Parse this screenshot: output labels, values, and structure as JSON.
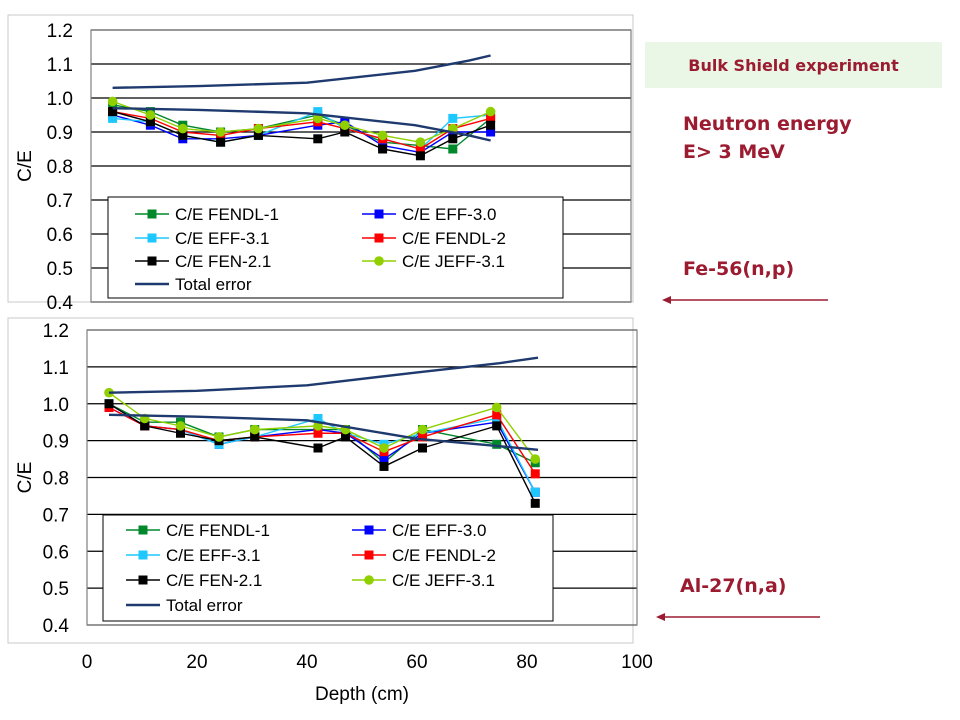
{
  "header": {
    "banner": "Bulk Shield experiment",
    "energy_line1": "Neutron energy",
    "energy_line2": "E> 3 MeV",
    "reaction_top": "Fe-56(n,p)",
    "reaction_bottom": "Al-27(n,a)"
  },
  "colors": {
    "FENDL-1": "#00882b",
    "EFF-3.0": "#0000ff",
    "EFF-3.1": "#1ec8ff",
    "FENDL-2": "#ff0000",
    "FEN-2.1": "#000000",
    "JEFF-3.1": "#90d000",
    "Total error": "#1f3a6e",
    "annotation": "#9b1b30"
  },
  "chart_data": [
    {
      "type": "line",
      "reaction": "Fe-56(n,p)",
      "ylabel": "C/E",
      "ylim": [
        0.4,
        1.2
      ],
      "yticks": [
        "0.4",
        "0.5",
        "0.6",
        "0.7",
        "0.8",
        "0.9",
        "1.0",
        "1.1",
        "1.2"
      ],
      "xlim": [
        0,
        100
      ],
      "grid": "horizontal",
      "legend": "bottom-left",
      "x": [
        4,
        11,
        17,
        24,
        31,
        42,
        47,
        54,
        61,
        67,
        74
      ],
      "series": [
        {
          "name": "C/E FENDL-1",
          "key": "FENDL-1",
          "marker": "square",
          "values": [
            0.98,
            0.96,
            0.92,
            0.9,
            0.91,
            0.95,
            0.92,
            0.87,
            0.86,
            0.85,
            0.94
          ]
        },
        {
          "name": "C/E EFF-3.0",
          "key": "EFF-3.0",
          "marker": "square",
          "values": [
            0.95,
            0.92,
            0.88,
            0.88,
            0.89,
            0.92,
            0.93,
            0.86,
            0.84,
            0.9,
            0.9
          ]
        },
        {
          "name": "C/E EFF-3.1",
          "key": "EFF-3.1",
          "marker": "square",
          "values": [
            0.94,
            0.93,
            0.89,
            0.87,
            0.89,
            0.96,
            0.91,
            0.88,
            0.85,
            0.94,
            0.95
          ]
        },
        {
          "name": "C/E FENDL-2",
          "key": "FENDL-2",
          "marker": "square",
          "values": [
            0.96,
            0.94,
            0.9,
            0.89,
            0.91,
            0.93,
            0.91,
            0.88,
            0.85,
            0.91,
            0.94
          ]
        },
        {
          "name": "C/E FEN-2.1",
          "key": "FEN-2.1",
          "marker": "square",
          "values": [
            0.96,
            0.93,
            0.89,
            0.87,
            0.89,
            0.88,
            0.9,
            0.85,
            0.83,
            0.88,
            0.92
          ]
        },
        {
          "name": "C/E JEFF-3.1",
          "key": "JEFF-3.1",
          "marker": "circle",
          "values": [
            0.99,
            0.95,
            0.91,
            0.9,
            0.91,
            0.94,
            0.92,
            0.89,
            0.87,
            0.91,
            0.96
          ]
        },
        {
          "name": "Total error",
          "key": "Total error",
          "marker": "none",
          "x": [
            4,
            20,
            40,
            60,
            70,
            74
          ],
          "values": [
            1.03,
            1.035,
            1.045,
            1.08,
            1.11,
            1.125
          ]
        },
        {
          "name": "",
          "key": "Total error",
          "marker": "none",
          "x": [
            4,
            20,
            40,
            60,
            70,
            74
          ],
          "values": [
            0.97,
            0.965,
            0.955,
            0.92,
            0.89,
            0.875
          ]
        }
      ],
      "legend_entries": [
        {
          "label": "C/E FENDL-1",
          "key": "FENDL-1",
          "marker": "square"
        },
        {
          "label": "C/E EFF-3.0",
          "key": "EFF-3.0",
          "marker": "square"
        },
        {
          "label": "C/E EFF-3.1",
          "key": "EFF-3.1",
          "marker": "square"
        },
        {
          "label": "C/E FENDL-2",
          "key": "FENDL-2",
          "marker": "square"
        },
        {
          "label": "C/E FEN-2.1",
          "key": "FEN-2.1",
          "marker": "square"
        },
        {
          "label": "C/E JEFF-3.1",
          "key": "JEFF-3.1",
          "marker": "circle"
        },
        {
          "label": "Total error",
          "key": "Total error",
          "marker": "none"
        }
      ]
    },
    {
      "type": "line",
      "reaction": "Al-27(n,a)",
      "xlabel": "Depth (cm)",
      "ylabel": "C/E",
      "ylim": [
        0.4,
        1.2
      ],
      "yticks": [
        "0.4",
        "0.5",
        "0.6",
        "0.7",
        "0.8",
        "0.9",
        "1.0",
        "1.1",
        "1.2"
      ],
      "xlim": [
        0,
        100
      ],
      "xticks": [
        "0",
        "20",
        "40",
        "60",
        "80",
        "100"
      ],
      "grid": "horizontal",
      "legend": "bottom-left",
      "x": [
        4,
        10.5,
        17,
        24,
        30.5,
        42,
        47,
        54,
        61,
        74.5,
        81.5
      ],
      "series": [
        {
          "name": "C/E FENDL-1",
          "key": "FENDL-1",
          "marker": "square",
          "values": [
            1.0,
            0.95,
            0.95,
            0.91,
            0.93,
            0.93,
            0.93,
            0.84,
            0.93,
            0.89,
            0.84
          ]
        },
        {
          "name": "C/E EFF-3.0",
          "key": "EFF-3.0",
          "marker": "square",
          "values": [
            0.99,
            0.94,
            0.93,
            0.89,
            0.91,
            0.93,
            0.92,
            0.85,
            0.92,
            0.95,
            0.76
          ]
        },
        {
          "name": "C/E EFF-3.1",
          "key": "EFF-3.1",
          "marker": "square",
          "values": [
            1.0,
            0.94,
            0.93,
            0.89,
            0.91,
            0.96,
            0.92,
            0.89,
            0.92,
            0.96,
            0.76
          ]
        },
        {
          "name": "C/E FENDL-2",
          "key": "FENDL-2",
          "marker": "square",
          "values": [
            0.99,
            0.94,
            0.93,
            0.9,
            0.91,
            0.92,
            0.92,
            0.87,
            0.91,
            0.97,
            0.81
          ]
        },
        {
          "name": "C/E FEN-2.1",
          "key": "FEN-2.1",
          "marker": "square",
          "values": [
            1.0,
            0.94,
            0.92,
            0.9,
            0.91,
            0.88,
            0.91,
            0.83,
            0.88,
            0.94,
            0.73
          ]
        },
        {
          "name": "C/E JEFF-3.1",
          "key": "JEFF-3.1",
          "marker": "circle",
          "values": [
            1.03,
            0.96,
            0.94,
            0.91,
            0.93,
            0.94,
            0.93,
            0.88,
            0.93,
            0.99,
            0.85
          ]
        },
        {
          "name": "Total error",
          "key": "Total error",
          "marker": "none",
          "x": [
            4,
            20,
            40,
            60,
            75,
            82
          ],
          "values": [
            1.03,
            1.035,
            1.05,
            1.085,
            1.11,
            1.125
          ]
        },
        {
          "name": "",
          "key": "Total error",
          "marker": "none",
          "x": [
            4,
            20,
            40,
            60,
            75,
            82
          ],
          "values": [
            0.97,
            0.965,
            0.955,
            0.905,
            0.885,
            0.875
          ]
        }
      ],
      "legend_entries": [
        {
          "label": "C/E FENDL-1",
          "key": "FENDL-1",
          "marker": "square"
        },
        {
          "label": "C/E EFF-3.0",
          "key": "EFF-3.0",
          "marker": "square"
        },
        {
          "label": "C/E EFF-3.1",
          "key": "EFF-3.1",
          "marker": "square"
        },
        {
          "label": "C/E FENDL-2",
          "key": "FENDL-2",
          "marker": "square"
        },
        {
          "label": "C/E FEN-2.1",
          "key": "FEN-2.1",
          "marker": "square"
        },
        {
          "label": "C/E JEFF-3.1",
          "key": "JEFF-3.1",
          "marker": "circle"
        },
        {
          "label": "Total error",
          "key": "Total error",
          "marker": "none"
        }
      ]
    }
  ]
}
